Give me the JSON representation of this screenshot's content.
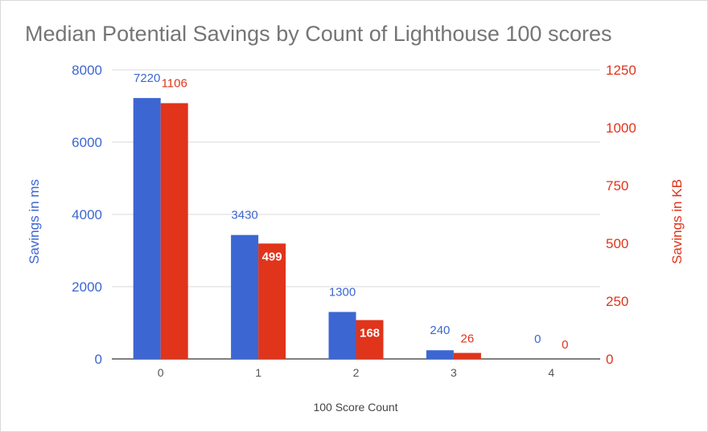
{
  "chart_data": {
    "type": "bar",
    "title": "Median Potential Savings by Count of Lighthouse 100 scores",
    "xlabel": "100 Score Count",
    "ylabel": "Savings in ms",
    "ylabel_right": "Savings in KB",
    "categories": [
      "0",
      "1",
      "2",
      "3",
      "4"
    ],
    "ylim": [
      0,
      8000
    ],
    "ylim_right": [
      0,
      1250
    ],
    "yticks": [
      "0",
      "2000",
      "4000",
      "6000",
      "8000"
    ],
    "yticks_right": [
      "0",
      "250",
      "500",
      "750",
      "1000",
      "1250"
    ],
    "grid": true,
    "legend": "none",
    "series": [
      {
        "axis": "left",
        "color": "#3c66d2",
        "values": [
          7220,
          3430,
          1300,
          240,
          0
        ],
        "labels": [
          "7220",
          "3430",
          "1300",
          "240",
          "0"
        ]
      },
      {
        "axis": "right",
        "color": "#e0341b",
        "values": [
          1106,
          499,
          168,
          26,
          0
        ],
        "labels": [
          "1106",
          "499",
          "168",
          "26",
          "0"
        ]
      }
    ]
  }
}
